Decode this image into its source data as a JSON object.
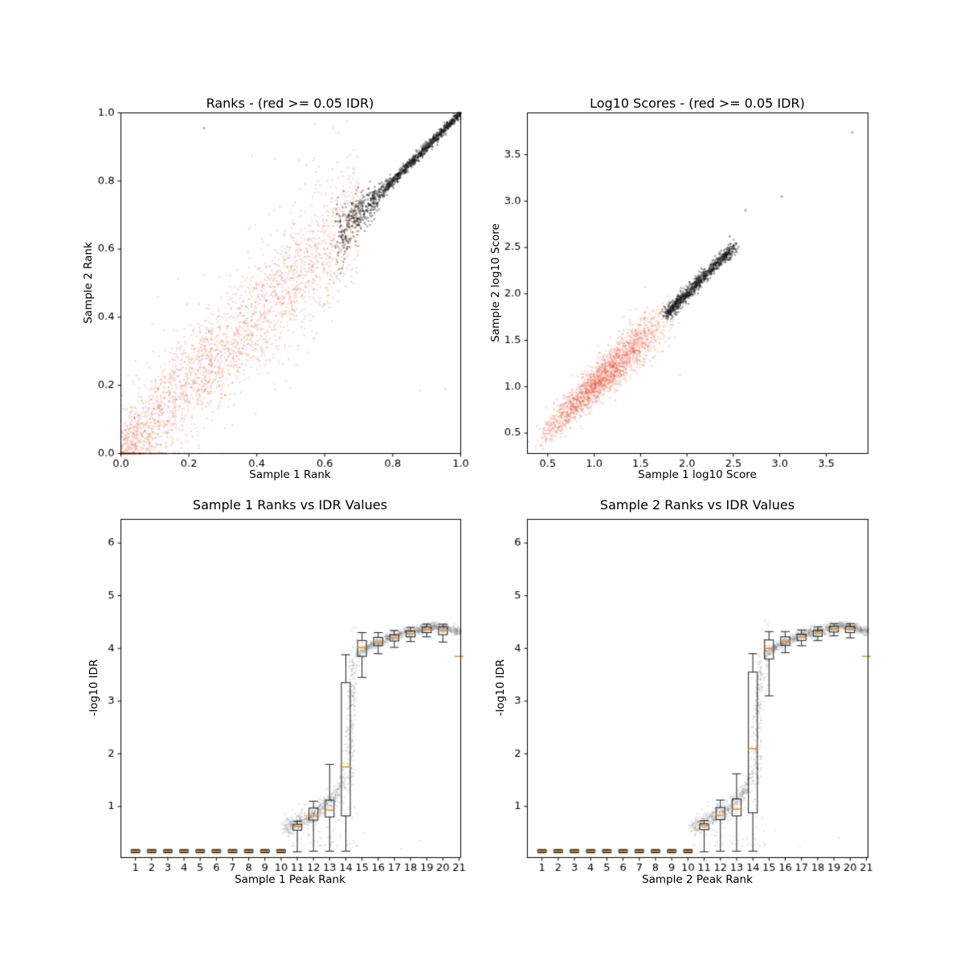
{
  "figure": {
    "background": "#ffffff",
    "colors": {
      "red": "rgba(231,93,62,0.22)",
      "black": "rgba(25,25,25,0.38)",
      "gray": "rgba(110,110,110,0.16)",
      "median": "#ff8c1a",
      "box_edge": "#1a1a1a",
      "axis": "#000000",
      "text": "#000000"
    }
  },
  "chart_data": [
    {
      "id": "ranks",
      "type": "scatter",
      "title": "Ranks - (red >= 0.05 IDR)",
      "xlabel": "Sample 1 Rank",
      "ylabel": "Sample 2 Rank",
      "xlim": [
        0.0,
        1.0
      ],
      "ylim": [
        0.0,
        1.0
      ],
      "xticks": [
        0.0,
        0.2,
        0.4,
        0.6,
        0.8,
        1.0
      ],
      "xtick_labels": [
        "0.0",
        "0.2",
        "0.4",
        "0.6",
        "0.8",
        "1.0"
      ],
      "yticks": [
        0.0,
        0.2,
        0.4,
        0.6,
        0.8,
        1.0
      ],
      "ytick_labels": [
        "0.0",
        "0.2",
        "0.4",
        "0.6",
        "0.8",
        "1.0"
      ],
      "points": {
        "seed": 101,
        "clusters": [
          {
            "name": "red-irreproducible-band",
            "color_key": "red",
            "n": 2300,
            "x_min": 0.0,
            "x_max": 0.7,
            "skew": 1.2,
            "noise": 0.065,
            "noise_grow": 0.4
          },
          {
            "name": "red-wide-sprinkle",
            "color_key": "red",
            "n": 320,
            "x_min": 0.0,
            "x_max": 0.68,
            "skew": 1.0,
            "noise": 0.16,
            "noise_grow": 0
          },
          {
            "name": "black-reproducible-band",
            "color_key": "black",
            "n": 1250,
            "x_min": 0.63,
            "x_max": 1.0,
            "skew": 0.85,
            "noise": 0.05,
            "noise_grow": -1.9
          }
        ],
        "outliers": [
          {
            "x": 0.245,
            "y": 0.955,
            "color_key": "black"
          },
          {
            "x": 0.88,
            "y": 0.185,
            "color_key": "red"
          },
          {
            "x": 0.955,
            "y": 0.19,
            "color_key": "red"
          }
        ]
      }
    },
    {
      "id": "scores",
      "type": "scatter",
      "title": "Log10 Scores - (red >= 0.05 IDR)",
      "xlabel": "Sample 1 log10 Score",
      "ylabel": "Sample 2 log10 Score",
      "xlim": [
        0.28,
        3.95
      ],
      "ylim": [
        0.28,
        3.95
      ],
      "xticks": [
        0.5,
        1.0,
        1.5,
        2.0,
        2.5,
        3.0,
        3.5
      ],
      "xtick_labels": [
        "0.5",
        "1.0",
        "1.5",
        "2.0",
        "2.5",
        "3.0",
        "3.5"
      ],
      "yticks": [
        0.5,
        1.0,
        1.5,
        2.0,
        2.5,
        3.0,
        3.5
      ],
      "ytick_labels": [
        "0.5",
        "1.0",
        "1.5",
        "2.0",
        "2.5",
        "3.0",
        "3.5"
      ],
      "points": {
        "seed": 202,
        "clusters": [
          {
            "name": "red-low-scores",
            "color_key": "red",
            "n": 2100,
            "x_min": 0.38,
            "x_max": 1.85,
            "tri": true,
            "noise": 0.1,
            "noise_grow": 0.9,
            "diag": true
          },
          {
            "name": "black-high-scores",
            "color_key": "black",
            "n": 950,
            "x_min": 1.78,
            "x_max": 2.52,
            "skew": 1.2,
            "noise": 0.05,
            "noise_grow": 0,
            "diag": true
          }
        ],
        "outliers": [
          {
            "x": 3.02,
            "y": 3.05,
            "color_key": "black"
          },
          {
            "x": 3.78,
            "y": 3.74,
            "color_key": "black"
          },
          {
            "x": 2.63,
            "y": 2.9,
            "color_key": "black"
          },
          {
            "x": 2.46,
            "y": 2.62,
            "color_key": "black"
          },
          {
            "x": 1.92,
            "y": 1.13,
            "color_key": "red"
          }
        ]
      }
    },
    {
      "id": "idr1",
      "type": "box",
      "title": "Sample 1 Ranks vs IDR Values",
      "xlabel": "Sample 1 Peak Rank",
      "ylabel": "-log10 IDR",
      "xlim": [
        0.1,
        21.1
      ],
      "ylim": [
        0.03,
        6.45
      ],
      "xticks": [
        1,
        2,
        3,
        4,
        5,
        6,
        7,
        8,
        9,
        10,
        11,
        12,
        13,
        14,
        15,
        16,
        17,
        18,
        19,
        20,
        21
      ],
      "xtick_labels": [
        "1",
        "2",
        "3",
        "4",
        "5",
        "6",
        "7",
        "8",
        "9",
        "10",
        "11",
        "12",
        "13",
        "14",
        "15",
        "16",
        "17",
        "18",
        "19",
        "20",
        "21"
      ],
      "yticks": [
        1,
        2,
        3,
        4,
        5,
        6
      ],
      "ytick_labels": [
        "1",
        "2",
        "3",
        "4",
        "5",
        "6"
      ],
      "box_width": 0.55,
      "box_stats": [
        [
          0.12,
          0.14,
          0.152,
          0.165,
          0.185
        ],
        [
          0.12,
          0.14,
          0.152,
          0.165,
          0.185
        ],
        [
          0.12,
          0.14,
          0.152,
          0.165,
          0.185
        ],
        [
          0.12,
          0.14,
          0.152,
          0.165,
          0.185
        ],
        [
          0.12,
          0.14,
          0.152,
          0.165,
          0.185
        ],
        [
          0.12,
          0.14,
          0.152,
          0.165,
          0.185
        ],
        [
          0.12,
          0.14,
          0.152,
          0.165,
          0.185
        ],
        [
          0.12,
          0.14,
          0.152,
          0.165,
          0.185
        ],
        [
          0.12,
          0.14,
          0.152,
          0.165,
          0.185
        ],
        [
          0.12,
          0.14,
          0.152,
          0.165,
          0.185
        ],
        [
          0.14,
          0.55,
          0.62,
          0.66,
          0.72
        ],
        [
          0.15,
          0.74,
          0.82,
          0.97,
          1.1
        ],
        [
          0.15,
          0.8,
          0.93,
          1.12,
          1.8
        ],
        [
          0.15,
          0.82,
          1.75,
          3.35,
          3.88
        ],
        [
          3.45,
          3.85,
          4.02,
          4.15,
          4.3
        ],
        [
          3.9,
          4.05,
          4.13,
          4.21,
          4.3
        ],
        [
          4.02,
          4.14,
          4.2,
          4.26,
          4.34
        ],
        [
          4.13,
          4.22,
          4.28,
          4.33,
          4.4
        ],
        [
          4.22,
          4.3,
          4.36,
          4.41,
          4.46
        ],
        [
          4.12,
          4.26,
          4.34,
          4.41,
          4.46
        ],
        [
          3.85,
          3.85,
          3.85,
          3.85,
          3.85
        ]
      ],
      "scatter": {
        "seed": 303,
        "n": 1700,
        "curve": [
          [
            10.2,
            0.6
          ],
          [
            11.5,
            0.75
          ],
          [
            12.5,
            0.95
          ],
          [
            13.5,
            1.25
          ],
          [
            14.0,
            1.6
          ],
          [
            14.6,
            3.8
          ],
          [
            15.2,
            4.0
          ],
          [
            17.0,
            4.25
          ],
          [
            19.5,
            4.42
          ],
          [
            21.1,
            4.32
          ]
        ],
        "column": {
          "x": 14.35,
          "x_jitter": 0.18,
          "y_min": 1.4,
          "y_max": 3.8,
          "n": 130
        },
        "low_band": {
          "x_min": 10.2,
          "x_max": 14.8,
          "y_min": 0.25,
          "y_max": 1.1,
          "n": 80
        },
        "strays": [
          [
            17.4,
            0.2
          ],
          [
            15.1,
            0.5
          ],
          [
            18.6,
            0.35
          ]
        ]
      }
    },
    {
      "id": "idr2",
      "type": "box",
      "title": "Sample 2 Ranks vs IDR Values",
      "xlabel": "Sample 2 Peak Rank",
      "ylabel": "-log10 IDR",
      "xlim": [
        0.1,
        21.1
      ],
      "ylim": [
        0.03,
        6.45
      ],
      "xticks": [
        1,
        2,
        3,
        4,
        5,
        6,
        7,
        8,
        9,
        10,
        11,
        12,
        13,
        14,
        15,
        16,
        17,
        18,
        19,
        20,
        21
      ],
      "xtick_labels": [
        "1",
        "2",
        "3",
        "4",
        "5",
        "6",
        "7",
        "8",
        "9",
        "10",
        "11",
        "12",
        "13",
        "14",
        "15",
        "16",
        "17",
        "18",
        "19",
        "20",
        "21"
      ],
      "yticks": [
        1,
        2,
        3,
        4,
        5,
        6
      ],
      "ytick_labels": [
        "1",
        "2",
        "3",
        "4",
        "5",
        "6"
      ],
      "box_width": 0.55,
      "box_stats": [
        [
          0.12,
          0.14,
          0.152,
          0.165,
          0.185
        ],
        [
          0.12,
          0.14,
          0.152,
          0.165,
          0.185
        ],
        [
          0.12,
          0.14,
          0.152,
          0.165,
          0.185
        ],
        [
          0.12,
          0.14,
          0.152,
          0.165,
          0.185
        ],
        [
          0.12,
          0.14,
          0.152,
          0.165,
          0.185
        ],
        [
          0.12,
          0.14,
          0.152,
          0.165,
          0.185
        ],
        [
          0.12,
          0.14,
          0.152,
          0.165,
          0.185
        ],
        [
          0.12,
          0.14,
          0.152,
          0.165,
          0.185
        ],
        [
          0.12,
          0.14,
          0.152,
          0.165,
          0.185
        ],
        [
          0.12,
          0.14,
          0.152,
          0.165,
          0.185
        ],
        [
          0.14,
          0.56,
          0.63,
          0.67,
          0.73
        ],
        [
          0.15,
          0.75,
          0.83,
          0.98,
          1.12
        ],
        [
          0.15,
          0.82,
          0.95,
          1.14,
          1.62
        ],
        [
          0.15,
          0.88,
          2.1,
          3.55,
          3.9
        ],
        [
          3.1,
          3.8,
          4.0,
          4.16,
          4.32
        ],
        [
          3.92,
          4.06,
          4.14,
          4.22,
          4.32
        ],
        [
          4.05,
          4.15,
          4.21,
          4.27,
          4.35
        ],
        [
          4.15,
          4.23,
          4.29,
          4.34,
          4.41
        ],
        [
          4.24,
          4.31,
          4.37,
          4.42,
          4.47
        ],
        [
          4.2,
          4.3,
          4.36,
          4.42,
          4.47
        ],
        [
          3.85,
          3.85,
          3.85,
          3.85,
          3.85
        ]
      ],
      "scatter": {
        "seed": 404,
        "n": 1700,
        "curve": [
          [
            10.2,
            0.6
          ],
          [
            11.5,
            0.76
          ],
          [
            12.5,
            0.97
          ],
          [
            13.5,
            1.28
          ],
          [
            14.0,
            1.65
          ],
          [
            14.6,
            3.8
          ],
          [
            15.2,
            4.0
          ],
          [
            17.0,
            4.26
          ],
          [
            19.5,
            4.43
          ],
          [
            21.1,
            4.33
          ]
        ],
        "column": {
          "x": 14.35,
          "x_jitter": 0.18,
          "y_min": 1.4,
          "y_max": 3.8,
          "n": 130
        },
        "low_band": {
          "x_min": 10.2,
          "x_max": 14.8,
          "y_min": 0.25,
          "y_max": 1.1,
          "n": 80
        },
        "strays": [
          [
            16.9,
            0.22
          ],
          [
            19.3,
            0.4
          ],
          [
            15.4,
            0.55
          ]
        ]
      }
    }
  ]
}
